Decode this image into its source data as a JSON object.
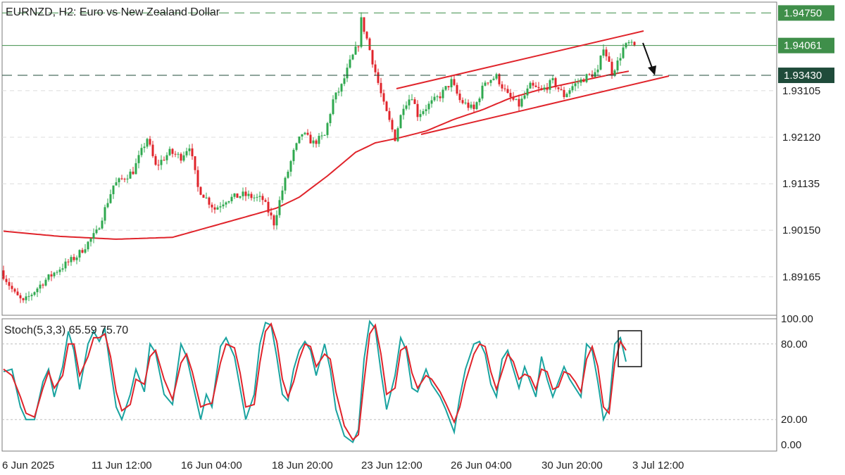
{
  "chart_data": [
    {
      "type": "candlestick",
      "symbol": "EURNZD",
      "timeframe": "H2",
      "title": "EURNZD, H2:  Euro vs New Zealand Dollar",
      "y_ticks": [
        "1.89165",
        "1.90150",
        "1.91135",
        "1.92120",
        "1.93105"
      ],
      "ylim": [
        1.8835,
        1.9498
      ],
      "price_badges": [
        {
          "value": "1.94750",
          "color": "#3f8f4a",
          "style": "dashed-green"
        },
        {
          "value": "1.94061",
          "color": "#3f8f4a",
          "style": "solid-green"
        },
        {
          "value": "1.93430",
          "color": "#1f4b3a",
          "style": "dashed-dark"
        }
      ],
      "x_ticks": [
        "6 Jun 2025",
        "11 Jun 12:00",
        "16 Jun 04:00",
        "18 Jun 20:00",
        "23 Jun 12:00",
        "26 Jun 04:00",
        "30 Jun 20:00",
        "3 Jul 12:00"
      ],
      "bars": 225,
      "bull_color": "#2fa84f",
      "bear_color": "#e0242b",
      "moving_average": {
        "color": "#e0242b",
        "values": [
          [
            0,
            1.9013
          ],
          [
            20,
            1.9002
          ],
          [
            40,
            1.8996
          ],
          [
            60,
            1.9
          ],
          [
            75,
            1.9025
          ],
          [
            90,
            1.905
          ],
          [
            97,
            1.9062
          ],
          [
            105,
            1.9085
          ],
          [
            115,
            1.913
          ],
          [
            125,
            1.918
          ],
          [
            132,
            1.92
          ],
          [
            140,
            1.921
          ],
          [
            150,
            1.9225
          ],
          [
            160,
            1.925
          ],
          [
            170,
            1.927
          ],
          [
            180,
            1.9295
          ],
          [
            190,
            1.9312
          ],
          [
            200,
            1.9325
          ],
          [
            215,
            1.9344
          ],
          [
            225,
            1.9355
          ]
        ]
      },
      "key_points": [
        [
          0,
          1.893
        ],
        [
          5,
          1.888
        ],
        [
          8,
          1.8862
        ],
        [
          15,
          1.8905
        ],
        [
          20,
          1.893
        ],
        [
          27,
          1.896
        ],
        [
          34,
          1.901
        ],
        [
          40,
          1.911
        ],
        [
          47,
          1.914
        ],
        [
          52,
          1.921
        ],
        [
          55,
          1.915
        ],
        [
          60,
          1.918
        ],
        [
          64,
          1.917
        ],
        [
          67,
          1.9195
        ],
        [
          70,
          1.9105
        ],
        [
          76,
          1.906
        ],
        [
          80,
          1.908
        ],
        [
          86,
          1.909
        ],
        [
          93,
          1.908
        ],
        [
          97,
          1.903
        ],
        [
          100,
          1.91
        ],
        [
          104,
          1.918
        ],
        [
          107,
          1.922
        ],
        [
          111,
          1.92
        ],
        [
          115,
          1.9215
        ],
        [
          118,
          1.929
        ],
        [
          121,
          1.932
        ],
        [
          124,
          1.937
        ],
        [
          127,
          1.941
        ],
        [
          128,
          1.946
        ],
        [
          130,
          1.942
        ],
        [
          133,
          1.935
        ],
        [
          136,
          1.928
        ],
        [
          140,
          1.921
        ],
        [
          143,
          1.928
        ],
        [
          146,
          1.93
        ],
        [
          148,
          1.926
        ],
        [
          152,
          1.928
        ],
        [
          156,
          1.93
        ],
        [
          160,
          1.933
        ],
        [
          163,
          1.929
        ],
        [
          168,
          1.927
        ],
        [
          172,
          1.933
        ],
        [
          176,
          1.934
        ],
        [
          180,
          1.93
        ],
        [
          184,
          1.928
        ],
        [
          188,
          1.932
        ],
        [
          192,
          1.931
        ],
        [
          196,
          1.933
        ],
        [
          200,
          1.93
        ],
        [
          203,
          1.932
        ],
        [
          208,
          1.934
        ],
        [
          212,
          1.935
        ],
        [
          214,
          1.9405
        ],
        [
          217,
          1.935
        ],
        [
          219,
          1.937
        ],
        [
          221,
          1.94
        ],
        [
          223,
          1.941
        ],
        [
          224,
          1.9406
        ]
      ]
    },
    {
      "type": "line",
      "title": "Stoch(5,3,3) 65.59 75.70",
      "y_ticks": [
        "100.00",
        "80.00",
        "20.00",
        "0.00"
      ],
      "ylim": [
        -5,
        100
      ],
      "series": [
        {
          "color": "#1aa3a0",
          "values": [
            [
              0,
              58
            ],
            [
              3,
              60
            ],
            [
              6,
              30
            ],
            [
              8,
              20
            ],
            [
              11,
              20
            ],
            [
              14,
              50
            ],
            [
              16,
              60
            ],
            [
              18,
              38
            ],
            [
              21,
              62
            ],
            [
              23,
              90
            ],
            [
              25,
              75
            ],
            [
              27,
              44
            ],
            [
              30,
              80
            ],
            [
              32,
              90
            ],
            [
              34,
              82
            ],
            [
              36,
              92
            ],
            [
              38,
              60
            ],
            [
              40,
              30
            ],
            [
              42,
              20
            ],
            [
              45,
              40
            ],
            [
              47,
              60
            ],
            [
              50,
              42
            ],
            [
              52,
              80
            ],
            [
              54,
              73
            ],
            [
              57,
              40
            ],
            [
              60,
              32
            ],
            [
              63,
              80
            ],
            [
              65,
              70
            ],
            [
              67,
              50
            ],
            [
              70,
              20
            ],
            [
              72,
              40
            ],
            [
              74,
              30
            ],
            [
              77,
              78
            ],
            [
              79,
              85
            ],
            [
              82,
              70
            ],
            [
              84,
              45
            ],
            [
              86,
              20
            ],
            [
              89,
              40
            ],
            [
              91,
              80
            ],
            [
              93,
              97
            ],
            [
              95,
              95
            ],
            [
              97,
              70
            ],
            [
              99,
              40
            ],
            [
              101,
              35
            ],
            [
              103,
              60
            ],
            [
              105,
              75
            ],
            [
              107,
              82
            ],
            [
              109,
              75
            ],
            [
              111,
              55
            ],
            [
              114,
              80
            ],
            [
              116,
              60
            ],
            [
              118,
              28
            ],
            [
              121,
              7
            ],
            [
              124,
              2
            ],
            [
              126,
              12
            ],
            [
              128,
              68
            ],
            [
              130,
              98
            ],
            [
              132,
              92
            ],
            [
              134,
              58
            ],
            [
              136,
              28
            ],
            [
              139,
              55
            ],
            [
              141,
              85
            ],
            [
              143,
              75
            ],
            [
              145,
              45
            ],
            [
              147,
              42
            ],
            [
              150,
              60
            ],
            [
              152,
              48
            ],
            [
              155,
              38
            ],
            [
              157,
              28
            ],
            [
              160,
              10
            ],
            [
              162,
              38
            ],
            [
              164,
              60
            ],
            [
              167,
              80
            ],
            [
              169,
              82
            ],
            [
              171,
              72
            ],
            [
              173,
              48
            ],
            [
              175,
              38
            ],
            [
              177,
              68
            ],
            [
              179,
              75
            ],
            [
              181,
              60
            ],
            [
              183,
              45
            ],
            [
              185,
              62
            ],
            [
              187,
              50
            ],
            [
              189,
              38
            ],
            [
              191,
              70
            ],
            [
              193,
              52
            ],
            [
              195,
              38
            ],
            [
              197,
              50
            ],
            [
              199,
              62
            ],
            [
              201,
              52
            ],
            [
              203,
              45
            ],
            [
              205,
              38
            ],
            [
              207,
              80
            ],
            [
              209,
              75
            ],
            [
              211,
              50
            ],
            [
              213,
              20
            ],
            [
              215,
              30
            ],
            [
              217,
              80
            ],
            [
              219,
              85
            ],
            [
              221,
              66
            ]
          ]
        },
        {
          "color": "#e0242b",
          "values": [
            [
              0,
              60
            ],
            [
              3,
              55
            ],
            [
              6,
              38
            ],
            [
              8,
              25
            ],
            [
              11,
              22
            ],
            [
              14,
              45
            ],
            [
              16,
              58
            ],
            [
              18,
              45
            ],
            [
              21,
              55
            ],
            [
              23,
              80
            ],
            [
              25,
              80
            ],
            [
              27,
              55
            ],
            [
              30,
              70
            ],
            [
              32,
              85
            ],
            [
              34,
              85
            ],
            [
              36,
              88
            ],
            [
              38,
              70
            ],
            [
              40,
              42
            ],
            [
              42,
              27
            ],
            [
              45,
              32
            ],
            [
              47,
              52
            ],
            [
              50,
              48
            ],
            [
              52,
              70
            ],
            [
              54,
              75
            ],
            [
              57,
              52
            ],
            [
              60,
              36
            ],
            [
              63,
              65
            ],
            [
              65,
              72
            ],
            [
              67,
              58
            ],
            [
              70,
              30
            ],
            [
              72,
              32
            ],
            [
              74,
              33
            ],
            [
              77,
              65
            ],
            [
              79,
              80
            ],
            [
              82,
              77
            ],
            [
              84,
              57
            ],
            [
              86,
              30
            ],
            [
              89,
              32
            ],
            [
              91,
              65
            ],
            [
              93,
              90
            ],
            [
              95,
              96
            ],
            [
              97,
              82
            ],
            [
              99,
              52
            ],
            [
              101,
              38
            ],
            [
              103,
              50
            ],
            [
              105,
              68
            ],
            [
              107,
              80
            ],
            [
              109,
              78
            ],
            [
              111,
              62
            ],
            [
              114,
              72
            ],
            [
              116,
              68
            ],
            [
              118,
              42
            ],
            [
              121,
              15
            ],
            [
              124,
              4
            ],
            [
              126,
              8
            ],
            [
              128,
              50
            ],
            [
              130,
              88
            ],
            [
              132,
              95
            ],
            [
              134,
              72
            ],
            [
              136,
              40
            ],
            [
              139,
              45
            ],
            [
              141,
              75
            ],
            [
              143,
              78
            ],
            [
              145,
              57
            ],
            [
              147,
              45
            ],
            [
              150,
              55
            ],
            [
              152,
              52
            ],
            [
              155,
              42
            ],
            [
              157,
              33
            ],
            [
              160,
              18
            ],
            [
              162,
              30
            ],
            [
              164,
              50
            ],
            [
              167,
              72
            ],
            [
              169,
              80
            ],
            [
              171,
              78
            ],
            [
              173,
              58
            ],
            [
              175,
              44
            ],
            [
              177,
              58
            ],
            [
              179,
              72
            ],
            [
              181,
              66
            ],
            [
              183,
              52
            ],
            [
              185,
              56
            ],
            [
              187,
              54
            ],
            [
              189,
              44
            ],
            [
              191,
              60
            ],
            [
              193,
              58
            ],
            [
              195,
              44
            ],
            [
              197,
              46
            ],
            [
              199,
              58
            ],
            [
              201,
              56
            ],
            [
              203,
              50
            ],
            [
              205,
              42
            ],
            [
              207,
              68
            ],
            [
              209,
              78
            ],
            [
              211,
              62
            ],
            [
              213,
              30
            ],
            [
              215,
              25
            ],
            [
              217,
              65
            ],
            [
              219,
              82
            ],
            [
              221,
              75
            ]
          ]
        }
      ]
    }
  ]
}
